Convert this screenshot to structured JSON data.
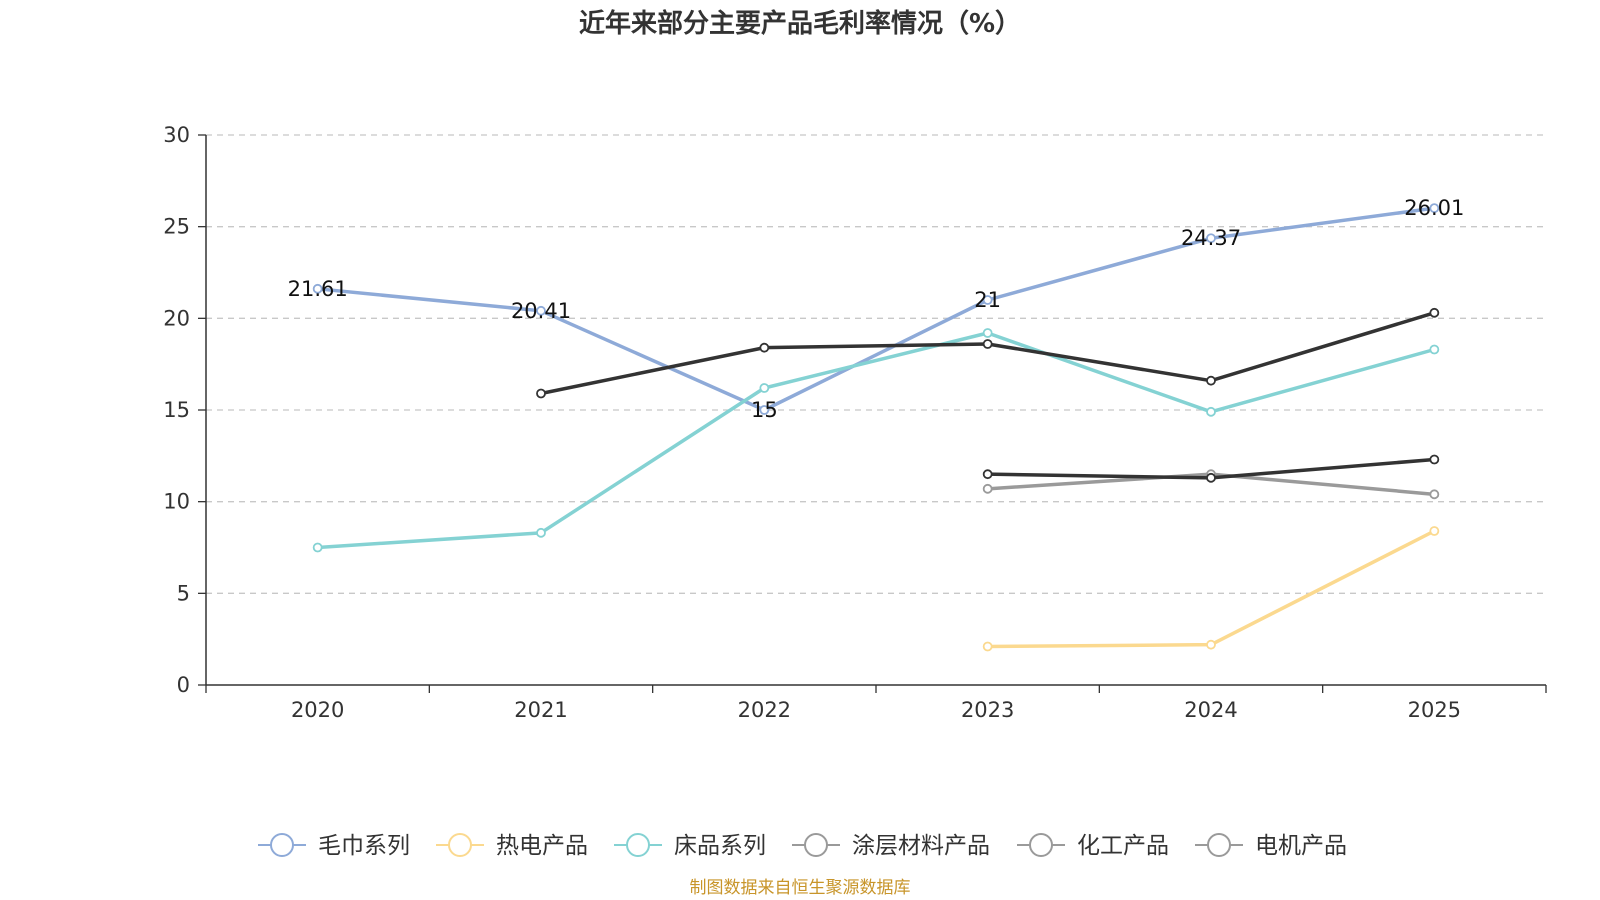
{
  "chart_data": {
    "type": "line",
    "title": "近年来部分主要产品毛利率情况（%）",
    "categories": [
      "2020",
      "2021",
      "2022",
      "2023",
      "2024",
      "2025"
    ],
    "ylim": [
      0,
      30
    ],
    "yticks": [
      "0",
      "5",
      "10",
      "15",
      "20",
      "25",
      "30"
    ],
    "xlabel": "",
    "ylabel": "",
    "grid": true,
    "legend_position": "bottom",
    "series": [
      {
        "name": "毛巾系列",
        "color": "#8eaad8",
        "values": [
          21.61,
          20.41,
          15,
          21,
          24.37,
          26.01
        ],
        "labels": [
          "21.61",
          "20.41",
          "15",
          "21",
          "24.37",
          "26.01"
        ]
      },
      {
        "name": "热电产品",
        "color": "#fbd98f",
        "values": [
          null,
          null,
          null,
          2.1,
          2.2,
          8.4
        ]
      },
      {
        "name": "床品系列",
        "color": "#84d2d3",
        "values": [
          7.5,
          8.3,
          16.2,
          19.2,
          14.9,
          18.3
        ]
      },
      {
        "name": "涂层材料产品",
        "color": "#9a9a9a",
        "values": [
          null,
          null,
          null,
          10.7,
          11.5,
          10.4
        ]
      },
      {
        "name": "化工产品",
        "color": "#333333",
        "values": [
          null,
          15.9,
          18.4,
          18.6,
          16.6,
          20.3
        ]
      },
      {
        "name": "电机产品",
        "color": "#333333",
        "values": [
          null,
          null,
          null,
          11.5,
          11.3,
          12.3
        ]
      }
    ],
    "legend_icon_colors": [
      "#8eaad8",
      "#fbd98f",
      "#84d2d3",
      "#9a9a9a",
      "#9a9a9a",
      "#9a9a9a"
    ]
  },
  "source": {
    "text": "制图数据来自恒生聚源数据库",
    "color": "#c8952a"
  }
}
